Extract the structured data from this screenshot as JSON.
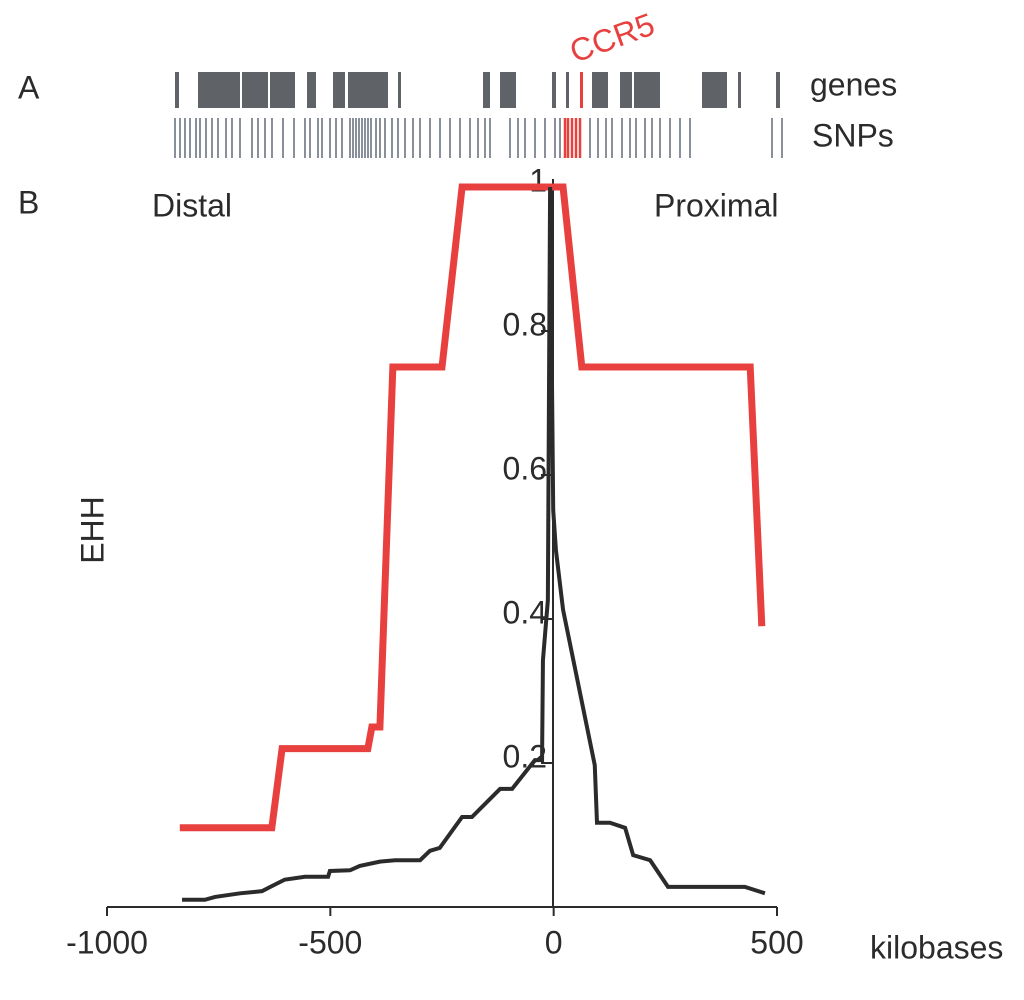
{
  "chart_data": {
    "type": "line",
    "panel_labels": [
      "A",
      "B"
    ],
    "track_labels": [
      "genes",
      "SNPs"
    ],
    "highlight_label": "CCR5",
    "annotations": [
      "Distal",
      "Proximal"
    ],
    "ylabel": "EHH",
    "xlabel": "kilobases",
    "xlim": [
      -1000,
      500
    ],
    "xticks": [
      -1000,
      -500,
      0,
      500
    ],
    "ylim": [
      0,
      1
    ],
    "yticks": [
      0.2,
      0.4,
      0.6,
      0.8,
      1
    ],
    "series": [
      {
        "color": "#e8403f",
        "x": [
          -837,
          -631,
          -608,
          -416,
          -407,
          -389,
          -360,
          -250,
          -205,
          21,
          63,
          440,
          466
        ],
        "values": [
          0.11,
          0.11,
          0.22,
          0.22,
          0.25,
          0.25,
          0.75,
          0.75,
          1,
          1,
          0.75,
          0.75,
          0.39
        ]
      },
      {
        "color": "#2b2b2b",
        "x": [
          -832,
          -781,
          -758,
          -702,
          -653,
          -631,
          -602,
          -557,
          -505,
          -501,
          -456,
          -434,
          -389,
          -355,
          -299,
          -277,
          -255,
          -205,
          -183,
          -120,
          -93,
          -42,
          -26,
          -24,
          -13,
          -8,
          -1,
          5,
          21,
          92,
          97,
          126,
          160,
          178,
          216,
          256,
          428,
          473
        ],
        "values": [
          0.01,
          0.01,
          0.014,
          0.019,
          0.022,
          0.029,
          0.038,
          0.042,
          0.042,
          0.05,
          0.051,
          0.057,
          0.063,
          0.065,
          0.065,
          0.078,
          0.082,
          0.125,
          0.125,
          0.164,
          0.164,
          0.204,
          0.204,
          0.343,
          0.426,
          1,
          0.551,
          0.496,
          0.413,
          0.197,
          0.117,
          0.117,
          0.11,
          0.072,
          0.065,
          0.028,
          0.028,
          0.019
        ]
      }
    ]
  }
}
